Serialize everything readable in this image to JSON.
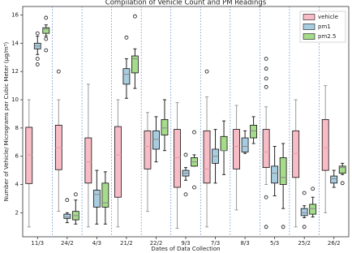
{
  "chart_data": {
    "type": "box",
    "title": "Compilation of Vehicle Count and PM Readings",
    "x_label": "Dates of Data Collection",
    "y_label": "Number of Vehicle/ Micrograms per Cubic Meter (μg/m³)",
    "categories": [
      "11/3",
      "24/2",
      "4/3",
      "21/2",
      "22/2",
      "9/3",
      "7/3",
      "8/3",
      "5/3",
      "25/2",
      "26/2"
    ],
    "ylim": [
      0.3,
      16.6
    ],
    "yticks": [
      2,
      4,
      6,
      8,
      10,
      12,
      14,
      16
    ],
    "legend": "upper right",
    "separators": true,
    "series": [
      {
        "name": "vehicle",
        "color": "#f8bcc6",
        "whislo": [
          1.0,
          2.1,
          1.0,
          1.0,
          2.1,
          0.9,
          1.0,
          2.2,
          4.0,
          1.0,
          2.0
        ],
        "q1": [
          4.07,
          5.05,
          4.1,
          3.1,
          5.1,
          3.8,
          4.1,
          5.1,
          5.2,
          4.5,
          5.0
        ],
        "med": [
          6.1,
          6.6,
          5.6,
          6.1,
          6.7,
          5.9,
          5.1,
          6.7,
          6.3,
          6.2,
          6.6
        ],
        "q3": [
          8.05,
          8.2,
          7.3,
          8.1,
          7.8,
          7.9,
          7.8,
          7.9,
          7.9,
          7.8,
          8.6
        ],
        "whishi": [
          10.0,
          10.0,
          11.1,
          10.0,
          9.1,
          9.8,
          10.2,
          9.6,
          9.5,
          10.0,
          11.0
        ],
        "fliers": [
          [],
          [
            12.0
          ],
          [],
          [],
          [],
          [],
          [
            12.0
          ],
          [],
          [
            12.9,
            12.2,
            11.5,
            10.9,
            3.1,
            1.0
          ],
          [],
          []
        ]
      },
      {
        "name": "pm1",
        "color": "#a8cde0",
        "whislo": [
          13.2,
          1.3,
          1.2,
          10.1,
          5.6,
          4.3,
          4.1,
          6.2,
          3.2,
          1.65,
          3.8
        ],
        "q1": [
          13.6,
          1.6,
          2.4,
          11.1,
          6.5,
          4.6,
          5.5,
          6.3,
          4.1,
          1.8,
          4.1
        ],
        "med": [
          13.8,
          1.7,
          3.3,
          11.8,
          7.2,
          4.8,
          6.0,
          6.7,
          4.8,
          2.0,
          4.4
        ],
        "q3": [
          14.0,
          1.9,
          3.6,
          12.2,
          7.8,
          5.0,
          6.5,
          7.3,
          5.3,
          2.3,
          4.6
        ],
        "whishi": [
          14.5,
          2.0,
          5.0,
          12.9,
          8.8,
          5.2,
          7.9,
          7.8,
          6.7,
          2.5,
          5.0
        ],
        "fliers": [
          [
            14.7,
            12.9,
            12.5
          ],
          [
            2.9
          ],
          [],
          [
            14.4
          ],
          [],
          [
            6.1,
            3.3
          ],
          [],
          [],
          [],
          [
            3.4,
            1.0
          ],
          []
        ]
      },
      {
        "name": "pm2.5",
        "color": "#a5db8a",
        "whislo": [
          14.5,
          1.2,
          1.2,
          10.8,
          6.4,
          5.3,
          4.7,
          6.9,
          2.3,
          1.7,
          4.7
        ],
        "q1": [
          14.7,
          1.5,
          2.4,
          11.9,
          7.5,
          5.3,
          6.4,
          7.3,
          4.0,
          1.9,
          4.8
        ],
        "med": [
          15.0,
          1.8,
          2.7,
          12.9,
          8.0,
          5.6,
          6.4,
          7.8,
          4.5,
          2.3,
          5.2
        ],
        "q3": [
          15.1,
          2.1,
          4.1,
          13.1,
          8.6,
          5.9,
          7.4,
          8.2,
          5.9,
          2.6,
          5.3
        ],
        "whishi": [
          15.3,
          2.9,
          4.9,
          13.6,
          10.0,
          6.1,
          8.5,
          8.8,
          6.9,
          3.1,
          5.5
        ],
        "fliers": [
          [
            15.8,
            14.3,
            13.5
          ],
          [
            3.3
          ],
          [],
          [
            15.9
          ],
          [],
          [
            7.7,
            3.8
          ],
          [],
          [],
          [
            1.0
          ],
          [
            3.7
          ],
          [
            4.1
          ]
        ]
      }
    ]
  }
}
